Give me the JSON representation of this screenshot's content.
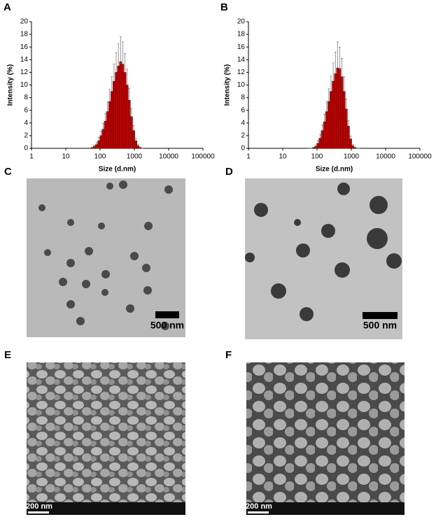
{
  "chart_data": [
    {
      "type": "histogram",
      "panel": "A",
      "xlabel": "Size (d.nm)",
      "ylabel": "Intensity (%)",
      "log_x": true,
      "color": "#c00000",
      "bins": [
        54.7,
        63.4,
        73.4,
        85.0,
        98.4,
        114,
        132,
        153,
        177,
        205,
        237,
        275,
        318,
        369,
        427,
        494,
        572,
        663,
        768,
        889,
        1030,
        1190,
        1380,
        1600,
        1850
      ],
      "counts": [
        0.1,
        0.3,
        0.6,
        1.2,
        2.0,
        3.0,
        4.3,
        5.8,
        7.4,
        9.0,
        10.6,
        12.0,
        13.0,
        13.7,
        13.3,
        12.0,
        10.0,
        7.6,
        5.0,
        2.8,
        1.2,
        0.4,
        0.1,
        0
      ],
      "errors": [
        0.1,
        0.2,
        0.3,
        0.5,
        0.7,
        0.9,
        1.2,
        1.5,
        1.9,
        2.3,
        2.7,
        3.1,
        3.5,
        3.9,
        3.5,
        3.0,
        2.5,
        1.9,
        1.3,
        0.8,
        0.4,
        0.2,
        0.1,
        0
      ],
      "xlim": [
        1,
        100000
      ],
      "xticks": [
        1,
        10,
        100,
        1000,
        10000,
        100000
      ],
      "ylim": [
        0,
        20
      ],
      "yticks": [
        0,
        2,
        4,
        6,
        8,
        10,
        12,
        14,
        16,
        18,
        20
      ]
    },
    {
      "type": "histogram",
      "panel": "B",
      "xlabel": "Size (d.nm)",
      "ylabel": "Intensity (%)",
      "log_x": true,
      "color": "#c00000",
      "bins": [
        54.7,
        63.4,
        73.4,
        85.0,
        98.4,
        114,
        132,
        153,
        177,
        205,
        237,
        275,
        318,
        369,
        427,
        494,
        572,
        663,
        768,
        889,
        1030,
        1190,
        1380,
        1600,
        1850
      ],
      "counts": [
        0,
        0,
        0.1,
        0.3,
        0.8,
        1.6,
        2.8,
        4.2,
        5.8,
        7.4,
        9.0,
        10.6,
        11.8,
        12.7,
        12.6,
        11.3,
        9.0,
        6.2,
        3.5,
        1.5,
        0.4,
        0.1,
        0,
        0
      ],
      "errors": [
        0,
        0,
        0.1,
        0.2,
        0.4,
        0.6,
        0.9,
        1.2,
        1.6,
        2.0,
        2.4,
        2.9,
        3.4,
        4.1,
        3.4,
        2.9,
        2.3,
        1.6,
        0.9,
        0.4,
        0.2,
        0.1,
        0,
        0
      ],
      "xlim": [
        1,
        100000
      ],
      "xticks": [
        1,
        10,
        100,
        1000,
        10000,
        100000
      ],
      "ylim": [
        0,
        20
      ],
      "yticks": [
        0,
        2,
        4,
        6,
        8,
        10,
        12,
        14,
        16,
        18,
        20
      ]
    }
  ],
  "panels": [
    {
      "label": "C",
      "scale_bar": "500 nm"
    },
    {
      "label": "D",
      "scale_bar": "500 nm"
    },
    {
      "label": "E",
      "scale_bar": "200 nm"
    },
    {
      "label": "F",
      "scale_bar": "200 nm"
    }
  ]
}
